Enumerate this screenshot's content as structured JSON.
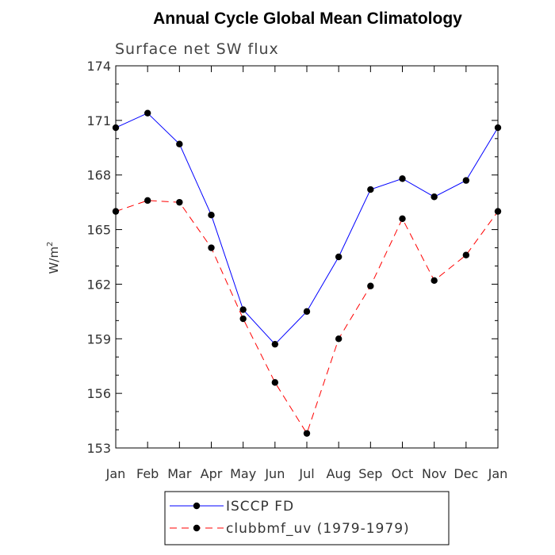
{
  "chart_data": {
    "type": "line",
    "title": "Annual Cycle Global Mean Climatology",
    "subtitle": "Surface net SW flux",
    "ylabel": "W/m",
    "ylabel_superscript": "2",
    "categories": [
      "Jan",
      "Feb",
      "Mar",
      "Apr",
      "May",
      "Jun",
      "Jul",
      "Aug",
      "Sep",
      "Oct",
      "Nov",
      "Dec",
      "Jan"
    ],
    "ylim": [
      153,
      174
    ],
    "yticks": [
      153,
      156,
      159,
      162,
      165,
      168,
      171,
      174
    ],
    "grid": false,
    "legend_position": "bottom-center",
    "series": [
      {
        "name": "ISCCP FD",
        "color": "#0000ff",
        "dash": "solid",
        "values": [
          170.6,
          171.4,
          169.7,
          165.8,
          160.6,
          158.7,
          160.5,
          163.5,
          167.2,
          167.8,
          166.8,
          167.7,
          170.6
        ]
      },
      {
        "name": "clubbmf_uv (1979-1979)",
        "color": "#ff0000",
        "dash": "dashed",
        "values": [
          166.0,
          166.6,
          166.5,
          164.0,
          160.1,
          156.6,
          153.8,
          159.0,
          161.9,
          165.6,
          162.2,
          163.6,
          166.0
        ]
      }
    ]
  }
}
